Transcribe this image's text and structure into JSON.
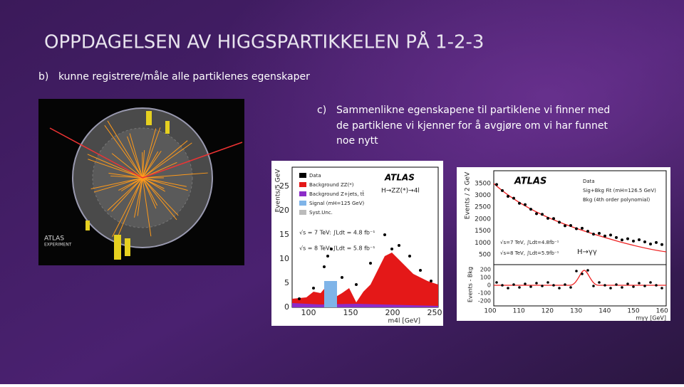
{
  "header": {
    "title": "OPPDAGELSEN AV HIGGSPARTIKKELEN PÅ 1-2-3"
  },
  "bullets": [
    {
      "marker": "b)",
      "lines": [
        "kunne registrere/måle alle partiklenes egenskaper"
      ]
    },
    {
      "marker": "c)",
      "lines": [
        "Sammenlikne egenskapene til partiklene vi finner med",
        "de partiklene vi kjenner for å avgjøre om vi har funnet",
        "noe nytt"
      ]
    }
  ],
  "figures": {
    "event_display": {
      "labels": [
        "ATLAS",
        "EXPERIMENT"
      ]
    },
    "zz_plot": {
      "brand": "ATLAS",
      "channel": "H→ZZ(*)→4l",
      "y_label": "Events/5 GeV",
      "x_label": "m4l [GeV]",
      "yticks": [
        "0",
        "5",
        "10",
        "15",
        "20",
        "25"
      ],
      "xticks": [
        "100",
        "150",
        "200",
        "250"
      ],
      "legend": [
        "Data",
        "Background ZZ(*)",
        "Background Z+jets, tt̄",
        "Signal (mH=125 GeV)",
        "Syst.Unc."
      ],
      "lumi": [
        "√s = 7 TeV: ∫Ldt = 4.8 fb⁻¹",
        "√s = 8 TeV: ∫Ldt = 5.8 fb⁻¹"
      ]
    },
    "gg_plot": {
      "brand": "ATLAS",
      "channel": "H→γγ",
      "y_label": "Events / 2 GeV",
      "res_label": "Events - Bkg",
      "x_label": "mγγ [GeV]",
      "yticks": [
        "500",
        "1000",
        "1500",
        "2000",
        "2500",
        "3000",
        "3500"
      ],
      "res_ticks": [
        "200",
        "100",
        "0",
        "-100",
        "-200"
      ],
      "xticks": [
        "100",
        "110",
        "120",
        "130",
        "140",
        "150",
        "160"
      ],
      "legend": [
        "Data",
        "Sig+Bkg Fit (mH=126.5 GeV)",
        "Bkg (4th order polynomial)"
      ],
      "lumi": [
        "√s=7 TeV, ∫Ldt=4.8fb⁻¹",
        "√s=8 TeV, ∫Ldt=5.9fb⁻¹"
      ]
    }
  }
}
